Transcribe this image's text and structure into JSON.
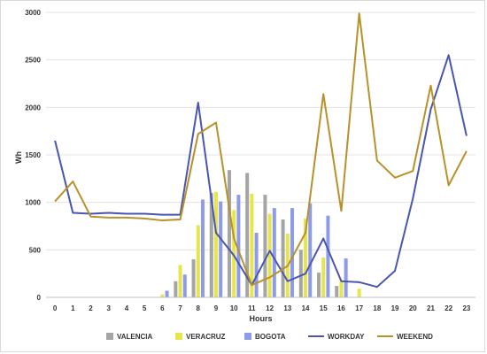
{
  "chart_data": {
    "type": "bar",
    "title": "",
    "xlabel": "Hours",
    "ylabel": "Wh",
    "ylim": [
      0,
      3000
    ],
    "yticks": [
      0,
      500,
      1000,
      1500,
      2000,
      2500,
      3000
    ],
    "grid": "horizontal",
    "legend_position": "bottom",
    "categories": [
      "0",
      "1",
      "2",
      "3",
      "4",
      "5",
      "6",
      "7",
      "8",
      "9",
      "10",
      "11",
      "12",
      "13",
      "14",
      "15",
      "16",
      "17",
      "18",
      "19",
      "20",
      "21",
      "22",
      "23"
    ],
    "series": [
      {
        "name": "VALENCIA",
        "kind": "bar",
        "color": "#a5a5a5",
        "values": [
          0,
          0,
          0,
          0,
          0,
          0,
          0,
          170,
          400,
          1100,
          1340,
          1310,
          1080,
          820,
          500,
          260,
          120,
          0,
          0,
          0,
          0,
          0,
          0,
          0
        ]
      },
      {
        "name": "VERACRUZ",
        "kind": "bar",
        "color": "#e6e64c",
        "values": [
          0,
          0,
          0,
          0,
          0,
          0,
          30,
          340,
          760,
          1110,
          920,
          1090,
          880,
          670,
          830,
          420,
          180,
          90,
          0,
          0,
          0,
          0,
          0,
          0
        ]
      },
      {
        "name": "BOGOTA",
        "kind": "bar",
        "color": "#8e9be8",
        "values": [
          0,
          0,
          0,
          0,
          0,
          0,
          70,
          240,
          1030,
          1010,
          1080,
          680,
          940,
          940,
          990,
          860,
          410,
          0,
          0,
          0,
          0,
          0,
          0,
          0
        ]
      },
      {
        "name": "WORKDAY",
        "kind": "line",
        "color": "#4a55b0",
        "values": [
          1650,
          890,
          880,
          890,
          880,
          880,
          870,
          870,
          2050,
          680,
          440,
          130,
          490,
          170,
          250,
          620,
          170,
          160,
          110,
          280,
          1040,
          1980,
          2550,
          1700
        ]
      },
      {
        "name": "WEEKEND",
        "kind": "line",
        "color": "#b8912a",
        "values": [
          1010,
          1220,
          850,
          840,
          840,
          830,
          810,
          820,
          1720,
          1840,
          620,
          130,
          210,
          330,
          680,
          2140,
          910,
          2990,
          1440,
          1260,
          1330,
          2230,
          1180,
          1540
        ]
      }
    ]
  }
}
